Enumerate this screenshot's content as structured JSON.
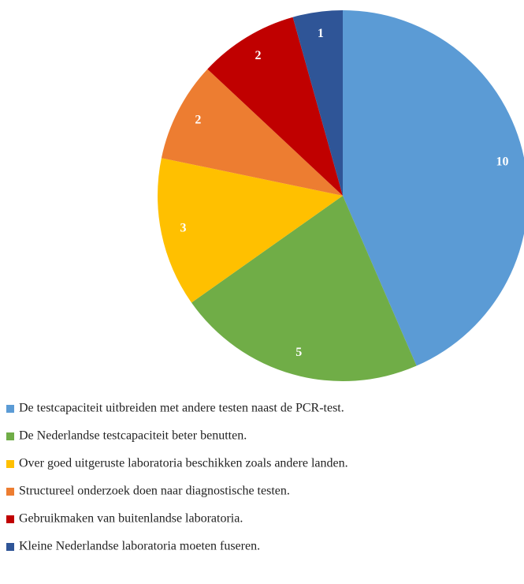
{
  "chart_data": {
    "type": "pie",
    "categories": [
      "De testcapaciteit uitbreiden met andere testen naast de PCR-test.",
      "De Nederlandse testcapaciteit beter benutten.",
      "Over goed uitgeruste laboratoria beschikken zoals andere landen.",
      "Structureel onderzoek doen naar diagnostische testen.",
      "Gebruikmaken van buitenlandse laboratoria.",
      "Kleine Nederlandse laboratoria moeten fuseren."
    ],
    "values": [
      10,
      5,
      3,
      2,
      2,
      1
    ],
    "colors": [
      "#5b9bd5",
      "#70ad47",
      "#ffc000",
      "#ed7d31",
      "#c00000",
      "#2f5597"
    ],
    "legend": "bottom"
  }
}
